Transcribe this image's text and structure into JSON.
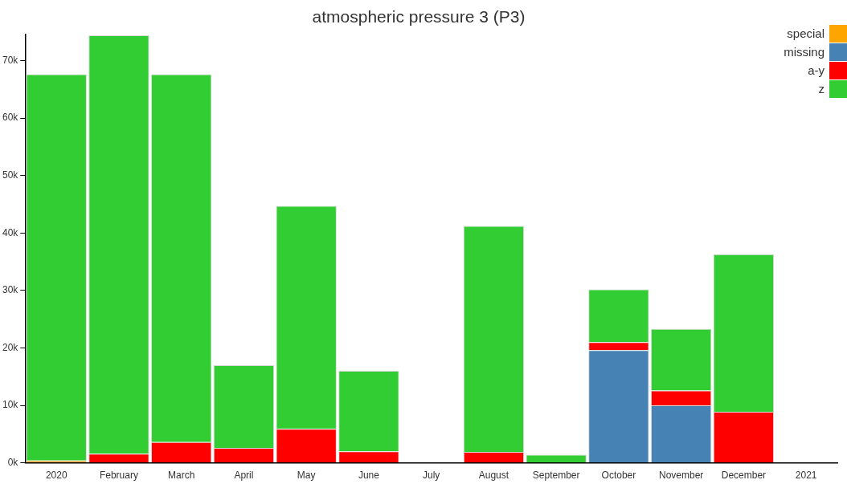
{
  "chart_data": {
    "type": "bar",
    "title": "atmospheric pressure 3 (P3)",
    "stacked": true,
    "legend": "top right",
    "categories": [
      "2020",
      "February",
      "March",
      "April",
      "May",
      "June",
      "July",
      "August",
      "September",
      "October",
      "November",
      "December",
      "2021"
    ],
    "series": [
      {
        "name": "special",
        "color": "#ffa500",
        "values": [
          400,
          0,
          0,
          0,
          0,
          0,
          0,
          0,
          0,
          0,
          0,
          0,
          null
        ]
      },
      {
        "name": "missing",
        "color": "#4682b4",
        "values": [
          0,
          0,
          0,
          0,
          0,
          0,
          0,
          0,
          0,
          19600,
          10000,
          0,
          null
        ]
      },
      {
        "name": "a-y",
        "color": "#ff0000",
        "values": [
          0,
          1600,
          3600,
          2600,
          5900,
          2000,
          0,
          1900,
          0,
          1400,
          2600,
          8900,
          null
        ]
      },
      {
        "name": "z",
        "color": "#32cd32",
        "values": [
          67200,
          72800,
          64000,
          14400,
          38800,
          14000,
          0,
          39300,
          1400,
          9200,
          10700,
          27400,
          null
        ]
      }
    ],
    "ylim": [
      0,
      74500
    ],
    "yticks": [
      {
        "value": 0,
        "label": "0k"
      },
      {
        "value": 10000,
        "label": "10k"
      },
      {
        "value": 20000,
        "label": "20k"
      },
      {
        "value": 30000,
        "label": "30k"
      },
      {
        "value": 40000,
        "label": "40k"
      },
      {
        "value": 50000,
        "label": "50k"
      },
      {
        "value": 60000,
        "label": "60k"
      },
      {
        "value": 70000,
        "label": "70k"
      }
    ],
    "grid": false
  }
}
